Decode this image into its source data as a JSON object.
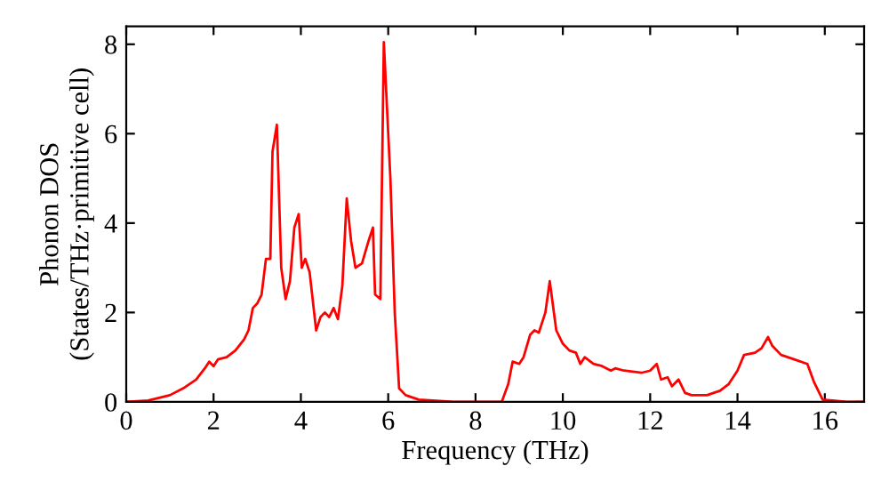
{
  "chart_data": {
    "type": "line",
    "xlabel": "Frequency (THz)",
    "ylabel": "Phonon DOS\n(States/THz·primitive cell)",
    "xlim": [
      0,
      16.9
    ],
    "ylim": [
      0,
      8.4
    ],
    "xticks": [
      0,
      2,
      4,
      6,
      8,
      10,
      12,
      14,
      16
    ],
    "yticks": [
      0,
      2,
      4,
      6,
      8
    ],
    "grid": false,
    "legend": false,
    "marker": "none",
    "line_style": "solid",
    "series": [
      {
        "color": "#ff0000",
        "x": [
          0,
          0.5,
          1.0,
          1.3,
          1.6,
          1.8,
          1.9,
          2.0,
          2.1,
          2.3,
          2.5,
          2.7,
          2.8,
          2.9,
          3.0,
          3.1,
          3.2,
          3.3,
          3.35,
          3.45,
          3.55,
          3.65,
          3.75,
          3.85,
          3.95,
          4.02,
          4.1,
          4.2,
          4.35,
          4.45,
          4.55,
          4.65,
          4.75,
          4.85,
          4.95,
          5.05,
          5.15,
          5.25,
          5.4,
          5.55,
          5.65,
          5.7,
          5.82,
          5.9,
          6.05,
          6.15,
          6.25,
          6.4,
          6.7,
          7.5,
          8.6,
          8.75,
          8.85,
          9.0,
          9.1,
          9.25,
          9.35,
          9.45,
          9.6,
          9.7,
          9.85,
          10.0,
          10.15,
          10.3,
          10.4,
          10.5,
          10.7,
          10.9,
          11.1,
          11.2,
          11.4,
          11.8,
          12.0,
          12.15,
          12.25,
          12.4,
          12.5,
          12.65,
          12.8,
          12.95,
          13.3,
          13.6,
          13.8,
          14.0,
          14.15,
          14.4,
          14.55,
          14.7,
          14.8,
          15.0,
          15.3,
          15.6,
          15.75,
          15.95,
          16.5,
          16.9
        ],
        "values": [
          0,
          0.03,
          0.15,
          0.3,
          0.5,
          0.75,
          0.9,
          0.8,
          0.95,
          1.0,
          1.15,
          1.4,
          1.6,
          2.1,
          2.2,
          2.4,
          3.2,
          3.2,
          5.6,
          6.2,
          3.0,
          2.3,
          2.7,
          3.9,
          4.2,
          3.0,
          3.2,
          2.9,
          1.6,
          1.9,
          2.0,
          1.9,
          2.1,
          1.85,
          2.6,
          4.55,
          3.6,
          3.0,
          3.1,
          3.6,
          3.9,
          2.4,
          2.3,
          8.05,
          5.0,
          2.0,
          0.3,
          0.15,
          0.05,
          0.0,
          0.0,
          0.4,
          0.9,
          0.85,
          1.0,
          1.5,
          1.6,
          1.55,
          2.0,
          2.7,
          1.6,
          1.3,
          1.15,
          1.1,
          0.85,
          1.0,
          0.85,
          0.8,
          0.7,
          0.75,
          0.7,
          0.65,
          0.7,
          0.85,
          0.5,
          0.55,
          0.35,
          0.5,
          0.2,
          0.15,
          0.15,
          0.25,
          0.4,
          0.7,
          1.05,
          1.1,
          1.2,
          1.45,
          1.25,
          1.05,
          0.95,
          0.85,
          0.45,
          0.05,
          0.0,
          0.0
        ]
      }
    ]
  }
}
